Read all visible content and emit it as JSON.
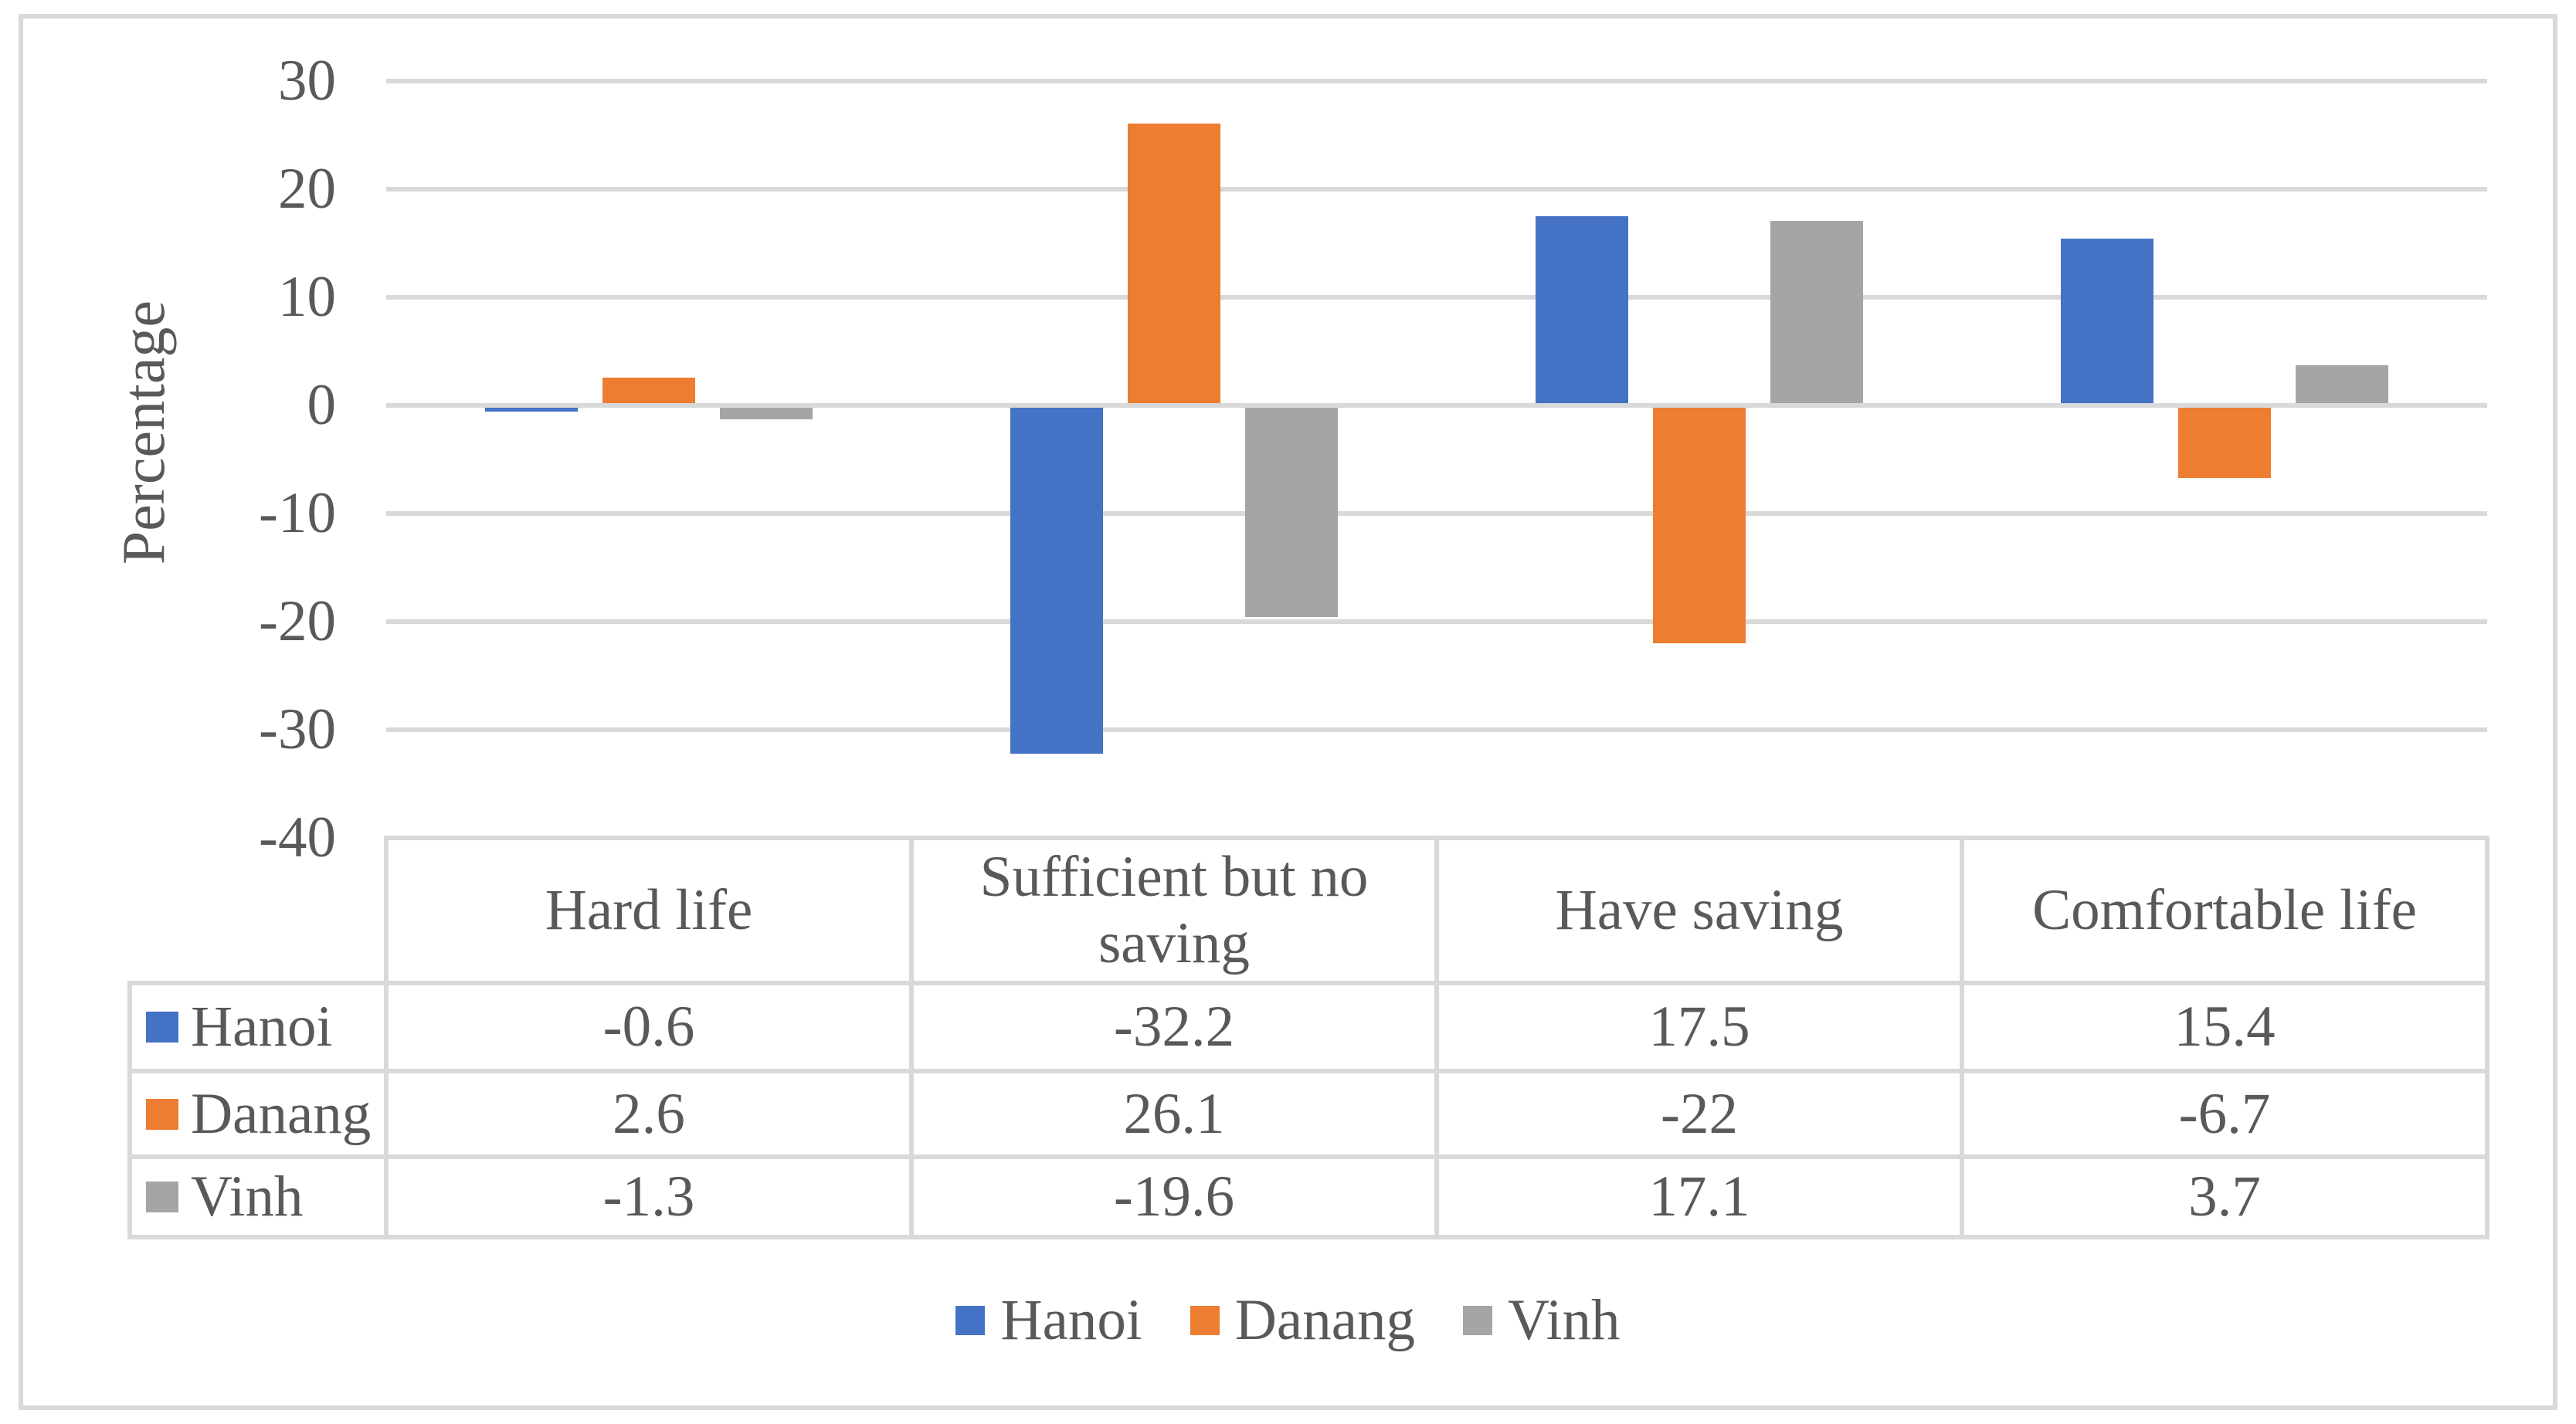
{
  "window": {
    "background": "#FFFFFF",
    "border_color": "#D9D9D9",
    "text_color": "#595959",
    "gridline_color": "#D9D9D9"
  },
  "chart_data": {
    "type": "bar",
    "title": "",
    "xlabel": "",
    "ylabel": "Percentage",
    "ylim": [
      -40,
      30
    ],
    "y_tick_step": 10,
    "y_ticks": [
      30,
      20,
      10,
      0,
      -10,
      -20,
      -30,
      -40
    ],
    "y_tick_labels": [
      "30",
      "20",
      "10",
      "0",
      "-10",
      "-20",
      "-30",
      "-40"
    ],
    "grid": true,
    "legend_position": "bottom",
    "has_data_table": true,
    "categories": [
      "Hard life",
      "Sufficient but no saving",
      "Have saving",
      "Comfortable life"
    ],
    "series": [
      {
        "name": "Hanoi",
        "color": "#4472C4",
        "values": [
          -0.6,
          -32.2,
          17.5,
          15.4
        ],
        "display_values": [
          "-0.6",
          "-32.2",
          "17.5",
          "15.4"
        ]
      },
      {
        "name": "Danang",
        "color": "#ED7D31",
        "values": [
          2.6,
          26.1,
          -22,
          -6.7
        ],
        "display_values": [
          "2.6",
          "26.1",
          "-22",
          "-6.7"
        ]
      },
      {
        "name": "Vinh",
        "color": "#A5A5A5",
        "values": [
          -1.3,
          -19.6,
          17.1,
          3.7
        ],
        "display_values": [
          "-1.3",
          "-19.6",
          "17.1",
          "3.7"
        ]
      }
    ],
    "legend": [
      "Hanoi",
      "Danang",
      "Vinh"
    ]
  }
}
